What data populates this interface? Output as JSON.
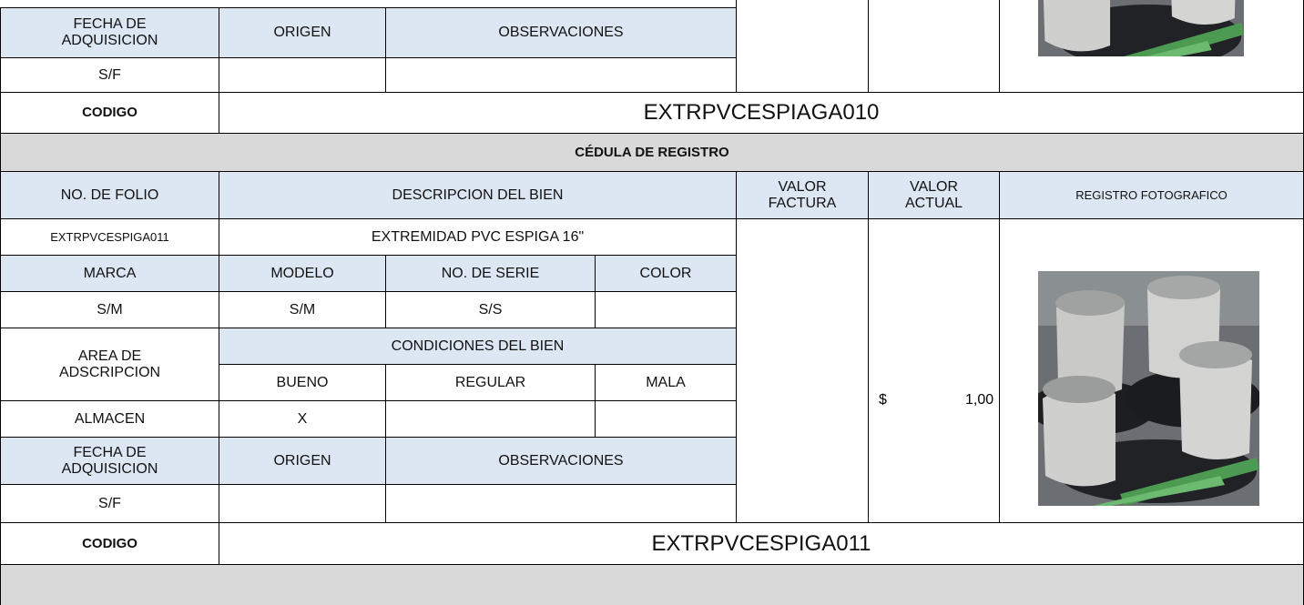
{
  "top_record": {
    "headers": [
      "FECHA DE\nADQUISICION",
      "ORIGEN",
      "OBSERVACIONES"
    ],
    "fecha": "S/F",
    "code_label": "CODIGO",
    "code": "EXTRPVCESPIAGA010"
  },
  "record": {
    "title": "CÉDULA DE REGISTRO",
    "headers": [
      "NO. DE FOLIO",
      "DESCRIPCION DEL BIEN",
      "VALOR\nFACTURA",
      "VALOR\nACTUAL",
      "REGISTRO FOTOGRAFICO"
    ],
    "folio": "EXTRPVCESPIGA011",
    "description": "EXTREMIDAD PVC ESPIGA 16\"",
    "labels": [
      "MARCA",
      "MODELO",
      "NO. DE SERIE",
      "COLOR"
    ],
    "details": [
      "S/M",
      "S/M",
      "S/S"
    ],
    "area_label": "AREA DE\nADSCRIPCION",
    "conditions_label": "CONDICIONES DEL BIEN",
    "conditions": [
      "BUENO",
      "REGULAR",
      "MALA"
    ],
    "area": "ALMACEN",
    "condition_mark": "X",
    "acq_headers": [
      "FECHA DE\nADQUISICION",
      "ORIGEN",
      "OBSERVACIONES"
    ],
    "fecha": "S/F",
    "currency": "$",
    "valor_actual": "1,00",
    "code_label": "CODIGO",
    "code": "EXTRPVCESPIGA011"
  }
}
